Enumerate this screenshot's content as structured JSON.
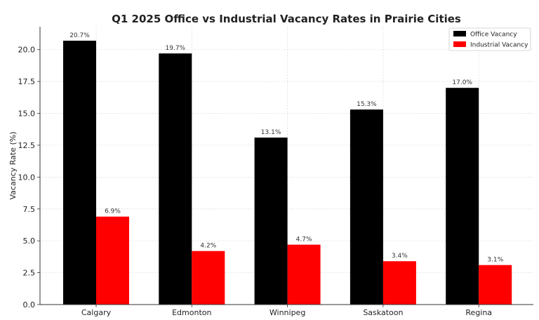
{
  "chart_data": {
    "type": "bar",
    "title": "Q1 2025 Office vs Industrial Vacancy Rates in Prairie Cities",
    "xlabel": "",
    "ylabel": "Vacancy Rate (%)",
    "categories": [
      "Calgary",
      "Edmonton",
      "Winnipeg",
      "Saskatoon",
      "Regina"
    ],
    "series": [
      {
        "name": "Office Vacancy",
        "color": "#000000",
        "values": [
          20.7,
          19.7,
          13.1,
          15.3,
          17.0
        ],
        "labels": [
          "20.7%",
          "19.7%",
          "13.1%",
          "15.3%",
          "17.0%"
        ]
      },
      {
        "name": "Industrial Vacancy",
        "color": "#ff0000",
        "values": [
          6.9,
          4.2,
          4.7,
          3.4,
          3.1
        ],
        "labels": [
          "6.9%",
          "4.2%",
          "4.7%",
          "3.4%",
          "3.1%"
        ]
      }
    ],
    "ylim": [
      0,
      21.8
    ],
    "yticks": [
      0.0,
      2.5,
      5.0,
      7.5,
      10.0,
      12.5,
      15.0,
      17.5,
      20.0
    ],
    "ytick_labels": [
      "0.0",
      "2.5",
      "5.0",
      "7.5",
      "10.0",
      "12.5",
      "15.0",
      "17.5",
      "20.0"
    ],
    "grid": true,
    "legend_position": "top-right"
  }
}
